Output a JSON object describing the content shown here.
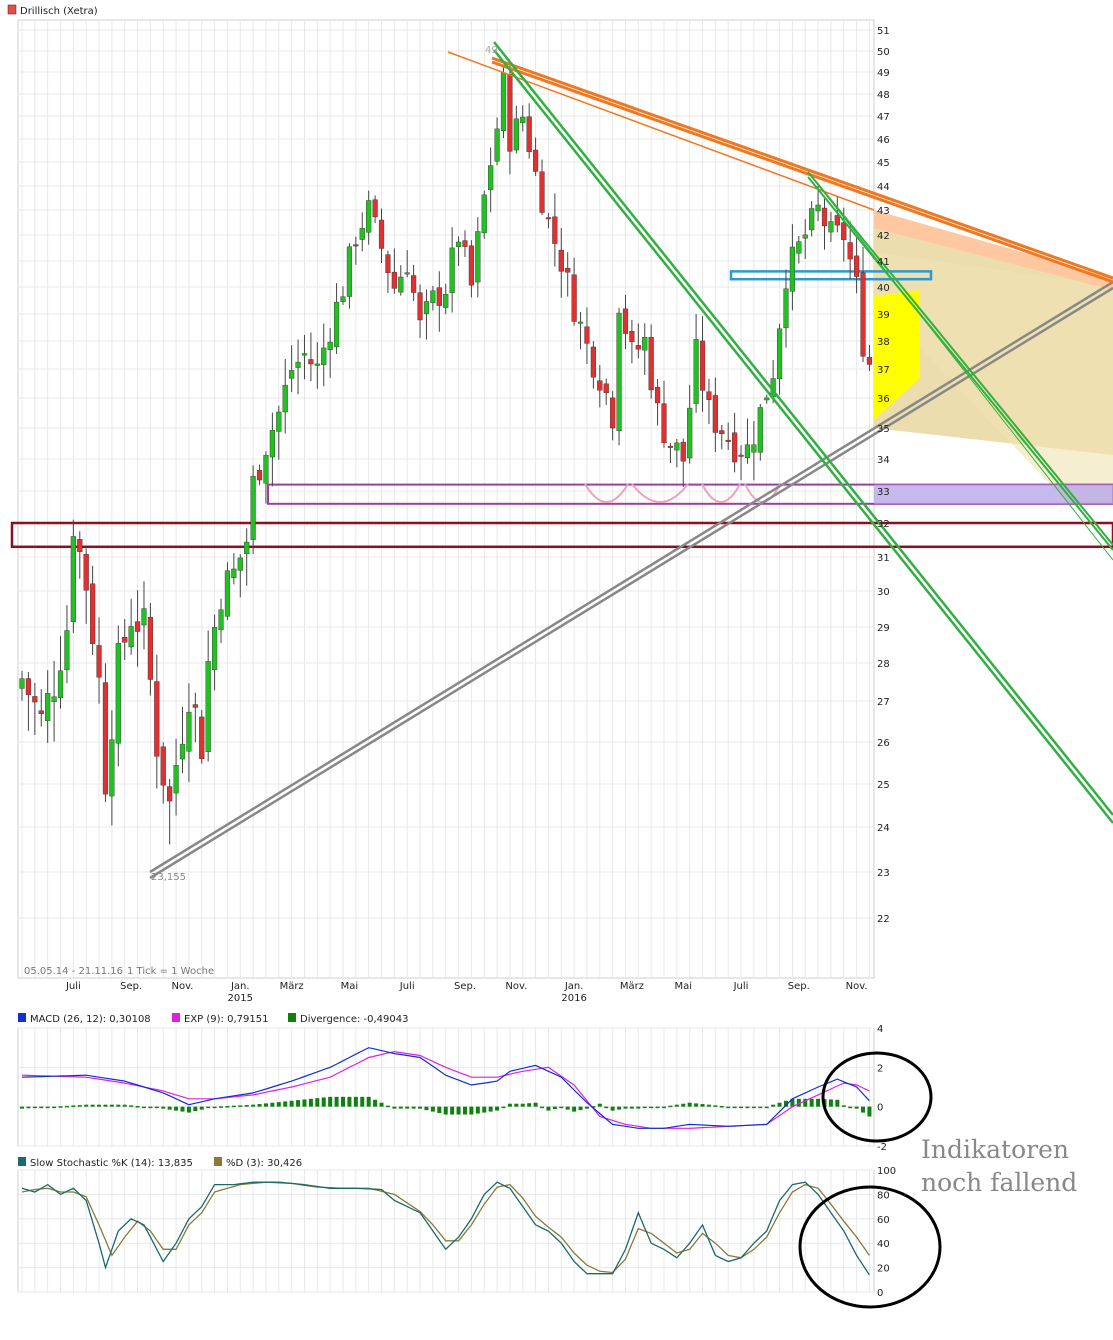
{
  "chart_data": [
    {
      "type": "candlestick",
      "title": "Drillisch (Xetra)",
      "legend_color": "#e05050",
      "range_text": "05.05.14 - 21.11.16",
      "tick_text": "1 Tick = 1 Woche",
      "low_label": "23,155",
      "high_label": "49",
      "ylim": [
        21,
        51
      ],
      "yticks": [
        22,
        23,
        24,
        25,
        26,
        27,
        28,
        29,
        30,
        31,
        32,
        33,
        34,
        35,
        36,
        37,
        38,
        39,
        40,
        41,
        42,
        43,
        44,
        45,
        46,
        47,
        48,
        49,
        50,
        51
      ],
      "xlabels": [
        {
          "week": 8,
          "label": "Juli"
        },
        {
          "week": 17,
          "label": "Sep."
        },
        {
          "week": 25,
          "label": "Nov."
        },
        {
          "week": 34,
          "label": "Jan.",
          "sub": "2015"
        },
        {
          "week": 42,
          "label": "März"
        },
        {
          "week": 51,
          "label": "Mai"
        },
        {
          "week": 60,
          "label": "Juli"
        },
        {
          "week": 69,
          "label": "Sep."
        },
        {
          "week": 77,
          "label": "Nov."
        },
        {
          "week": 86,
          "label": "Jan.",
          "sub": "2016"
        },
        {
          "week": 95,
          "label": "März"
        },
        {
          "week": 103,
          "label": "Mai"
        },
        {
          "week": 112,
          "label": "Juli"
        },
        {
          "week": 121,
          "label": "Sep."
        },
        {
          "week": 130,
          "label": "Nov."
        }
      ],
      "close_anchors": [
        [
          0,
          27.6
        ],
        [
          3,
          26.5
        ],
        [
          5,
          27.5
        ],
        [
          7,
          29.0
        ],
        [
          8,
          32.0
        ],
        [
          10,
          30.2
        ],
        [
          12,
          27.5
        ],
        [
          13,
          25.2
        ],
        [
          15,
          28.0
        ],
        [
          17,
          29.3
        ],
        [
          19,
          29.0
        ],
        [
          21,
          26.0
        ],
        [
          23,
          24.5
        ],
        [
          24,
          25.5
        ],
        [
          26,
          27.3
        ],
        [
          28,
          26.0
        ],
        [
          29,
          28.0
        ],
        [
          31,
          30.0
        ],
        [
          33,
          30.5
        ],
        [
          35,
          31.5
        ],
        [
          36,
          33.2
        ],
        [
          38,
          34.5
        ],
        [
          40,
          35.5
        ],
        [
          42,
          37.0
        ],
        [
          44,
          37.5
        ],
        [
          46,
          37.0
        ],
        [
          48,
          38.5
        ],
        [
          50,
          40.0
        ],
        [
          52,
          42.0
        ],
        [
          54,
          43.0
        ],
        [
          56,
          41.5
        ],
        [
          58,
          40.0
        ],
        [
          60,
          41.0
        ],
        [
          62,
          38.5
        ],
        [
          64,
          39.5
        ],
        [
          66,
          40.0
        ],
        [
          68,
          42.0
        ],
        [
          70,
          40.0
        ],
        [
          72,
          43.5
        ],
        [
          74,
          46.5
        ],
        [
          75,
          48.5
        ],
        [
          76,
          46.0
        ],
        [
          78,
          47.0
        ],
        [
          80,
          44.5
        ],
        [
          82,
          42.5
        ],
        [
          84,
          41.0
        ],
        [
          86,
          39.3
        ],
        [
          88,
          37.8
        ],
        [
          90,
          36.8
        ],
        [
          92,
          35.5
        ],
        [
          93,
          39.5
        ],
        [
          95,
          37.5
        ],
        [
          97,
          38.0
        ],
        [
          99,
          35.5
        ],
        [
          101,
          34.5
        ],
        [
          103,
          34.0
        ],
        [
          105,
          37.5
        ],
        [
          107,
          35.5
        ],
        [
          109,
          35.0
        ],
        [
          111,
          34.5
        ],
        [
          113,
          34.3
        ],
        [
          115,
          35.5
        ],
        [
          117,
          37.0
        ],
        [
          119,
          40.5
        ],
        [
          121,
          41.5
        ],
        [
          123,
          42.5
        ],
        [
          124,
          43.0
        ],
        [
          126,
          42.0
        ],
        [
          128,
          42.0
        ],
        [
          130,
          40.0
        ],
        [
          131,
          38.0
        ],
        [
          132,
          37.2
        ]
      ],
      "annotations": {
        "resistance_top_line": "orange",
        "support_long_line": "grey",
        "downtrend_lines": "green",
        "blue_zone": [
          40.3,
          40.6
        ],
        "purple_zone": [
          32.6,
          33.2
        ],
        "red_zone": [
          31.3,
          32.0
        ],
        "yellow_zone_label": "yellow"
      }
    },
    {
      "type": "line",
      "series": [
        {
          "name": "MACD (26, 12): 0,30108",
          "color": "#1030d0"
        },
        {
          "name": "EXP (9): 0,79151",
          "color": "#e020e0"
        },
        {
          "name": "Divergence: -0,49043",
          "color": "#108010"
        }
      ],
      "ylim": [
        -2,
        4
      ],
      "yticks": [
        -2,
        0,
        2,
        4
      ],
      "macd_anchors": [
        [
          0,
          1.5
        ],
        [
          10,
          1.6
        ],
        [
          16,
          1.3
        ],
        [
          22,
          0.7
        ],
        [
          26,
          0.1
        ],
        [
          30,
          0.4
        ],
        [
          36,
          0.7
        ],
        [
          42,
          1.3
        ],
        [
          48,
          2.0
        ],
        [
          54,
          3.0
        ],
        [
          58,
          2.7
        ],
        [
          62,
          2.5
        ],
        [
          66,
          1.6
        ],
        [
          70,
          1.1
        ],
        [
          74,
          1.3
        ],
        [
          76,
          1.8
        ],
        [
          80,
          2.1
        ],
        [
          84,
          1.5
        ],
        [
          88,
          0.2
        ],
        [
          92,
          -0.9
        ],
        [
          96,
          -1.1
        ],
        [
          100,
          -1.1
        ],
        [
          104,
          -0.9
        ],
        [
          110,
          -1.0
        ],
        [
          116,
          -0.9
        ],
        [
          120,
          0.4
        ],
        [
          124,
          1.0
        ],
        [
          127,
          1.4
        ],
        [
          130,
          1.0
        ],
        [
          132,
          0.3
        ]
      ],
      "signal_anchors": [
        [
          0,
          1.6
        ],
        [
          10,
          1.5
        ],
        [
          16,
          1.2
        ],
        [
          22,
          0.8
        ],
        [
          26,
          0.4
        ],
        [
          30,
          0.4
        ],
        [
          36,
          0.6
        ],
        [
          42,
          1.0
        ],
        [
          48,
          1.5
        ],
        [
          54,
          2.5
        ],
        [
          58,
          2.8
        ],
        [
          62,
          2.6
        ],
        [
          66,
          2.0
        ],
        [
          70,
          1.5
        ],
        [
          74,
          1.5
        ],
        [
          78,
          1.8
        ],
        [
          82,
          2.0
        ],
        [
          86,
          1.1
        ],
        [
          90,
          -0.5
        ],
        [
          94,
          -0.9
        ],
        [
          98,
          -1.1
        ],
        [
          104,
          -1.1
        ],
        [
          110,
          -1.0
        ],
        [
          116,
          -0.9
        ],
        [
          120,
          0.0
        ],
        [
          124,
          0.6
        ],
        [
          128,
          1.2
        ],
        [
          130,
          1.1
        ],
        [
          132,
          0.8
        ]
      ],
      "ring": true
    },
    {
      "type": "line",
      "series": [
        {
          "name": "Slow Stochastic %K (14): 13,835",
          "color": "#1a6a6a"
        },
        {
          "name": "%D (3): 30,426",
          "color": "#8a7a3a"
        }
      ],
      "ylim": [
        0,
        100
      ],
      "yticks": [
        0,
        20,
        40,
        60,
        80,
        100
      ],
      "k_anchors": [
        [
          0,
          85
        ],
        [
          2,
          82
        ],
        [
          4,
          88
        ],
        [
          6,
          80
        ],
        [
          8,
          85
        ],
        [
          10,
          75
        ],
        [
          12,
          40
        ],
        [
          13,
          20
        ],
        [
          15,
          50
        ],
        [
          17,
          60
        ],
        [
          19,
          55
        ],
        [
          21,
          35
        ],
        [
          22,
          25
        ],
        [
          24,
          40
        ],
        [
          26,
          60
        ],
        [
          28,
          70
        ],
        [
          30,
          88
        ],
        [
          33,
          88
        ],
        [
          36,
          90
        ],
        [
          40,
          90
        ],
        [
          44,
          88
        ],
        [
          48,
          85
        ],
        [
          52,
          85
        ],
        [
          56,
          84
        ],
        [
          58,
          75
        ],
        [
          60,
          70
        ],
        [
          62,
          65
        ],
        [
          64,
          50
        ],
        [
          66,
          35
        ],
        [
          68,
          45
        ],
        [
          70,
          60
        ],
        [
          72,
          80
        ],
        [
          74,
          90
        ],
        [
          76,
          85
        ],
        [
          78,
          70
        ],
        [
          80,
          55
        ],
        [
          82,
          50
        ],
        [
          84,
          40
        ],
        [
          86,
          25
        ],
        [
          88,
          15
        ],
        [
          90,
          15
        ],
        [
          92,
          15
        ],
        [
          94,
          35
        ],
        [
          96,
          65
        ],
        [
          98,
          40
        ],
        [
          100,
          35
        ],
        [
          102,
          28
        ],
        [
          104,
          40
        ],
        [
          106,
          55
        ],
        [
          108,
          30
        ],
        [
          110,
          25
        ],
        [
          112,
          28
        ],
        [
          114,
          40
        ],
        [
          116,
          50
        ],
        [
          118,
          75
        ],
        [
          120,
          88
        ],
        [
          122,
          90
        ],
        [
          124,
          80
        ],
        [
          126,
          65
        ],
        [
          128,
          50
        ],
        [
          130,
          30
        ],
        [
          132,
          14
        ]
      ],
      "d_anchors": [
        [
          0,
          82
        ],
        [
          2,
          84
        ],
        [
          4,
          85
        ],
        [
          6,
          82
        ],
        [
          8,
          82
        ],
        [
          10,
          78
        ],
        [
          12,
          55
        ],
        [
          14,
          30
        ],
        [
          16,
          45
        ],
        [
          18,
          58
        ],
        [
          20,
          50
        ],
        [
          22,
          35
        ],
        [
          24,
          35
        ],
        [
          26,
          55
        ],
        [
          28,
          65
        ],
        [
          30,
          82
        ],
        [
          34,
          88
        ],
        [
          38,
          90
        ],
        [
          42,
          89
        ],
        [
          46,
          86
        ],
        [
          50,
          85
        ],
        [
          54,
          85
        ],
        [
          58,
          80
        ],
        [
          60,
          73
        ],
        [
          62,
          66
        ],
        [
          64,
          55
        ],
        [
          66,
          42
        ],
        [
          68,
          42
        ],
        [
          70,
          55
        ],
        [
          72,
          72
        ],
        [
          74,
          86
        ],
        [
          76,
          88
        ],
        [
          78,
          77
        ],
        [
          80,
          62
        ],
        [
          82,
          53
        ],
        [
          84,
          45
        ],
        [
          86,
          32
        ],
        [
          88,
          22
        ],
        [
          90,
          17
        ],
        [
          92,
          16
        ],
        [
          94,
          27
        ],
        [
          96,
          52
        ],
        [
          98,
          48
        ],
        [
          100,
          40
        ],
        [
          102,
          32
        ],
        [
          104,
          35
        ],
        [
          106,
          48
        ],
        [
          108,
          40
        ],
        [
          110,
          30
        ],
        [
          112,
          28
        ],
        [
          114,
          35
        ],
        [
          116,
          45
        ],
        [
          118,
          65
        ],
        [
          120,
          82
        ],
        [
          122,
          88
        ],
        [
          124,
          85
        ],
        [
          126,
          72
        ],
        [
          128,
          58
        ],
        [
          130,
          45
        ],
        [
          132,
          30
        ]
      ],
      "ring": true
    }
  ],
  "annotation_text": {
    "line1": "Indikatoren",
    "line2": "noch fallend"
  },
  "colors": {
    "up": "#22c022",
    "down": "#e03030",
    "wick": "#444444"
  }
}
